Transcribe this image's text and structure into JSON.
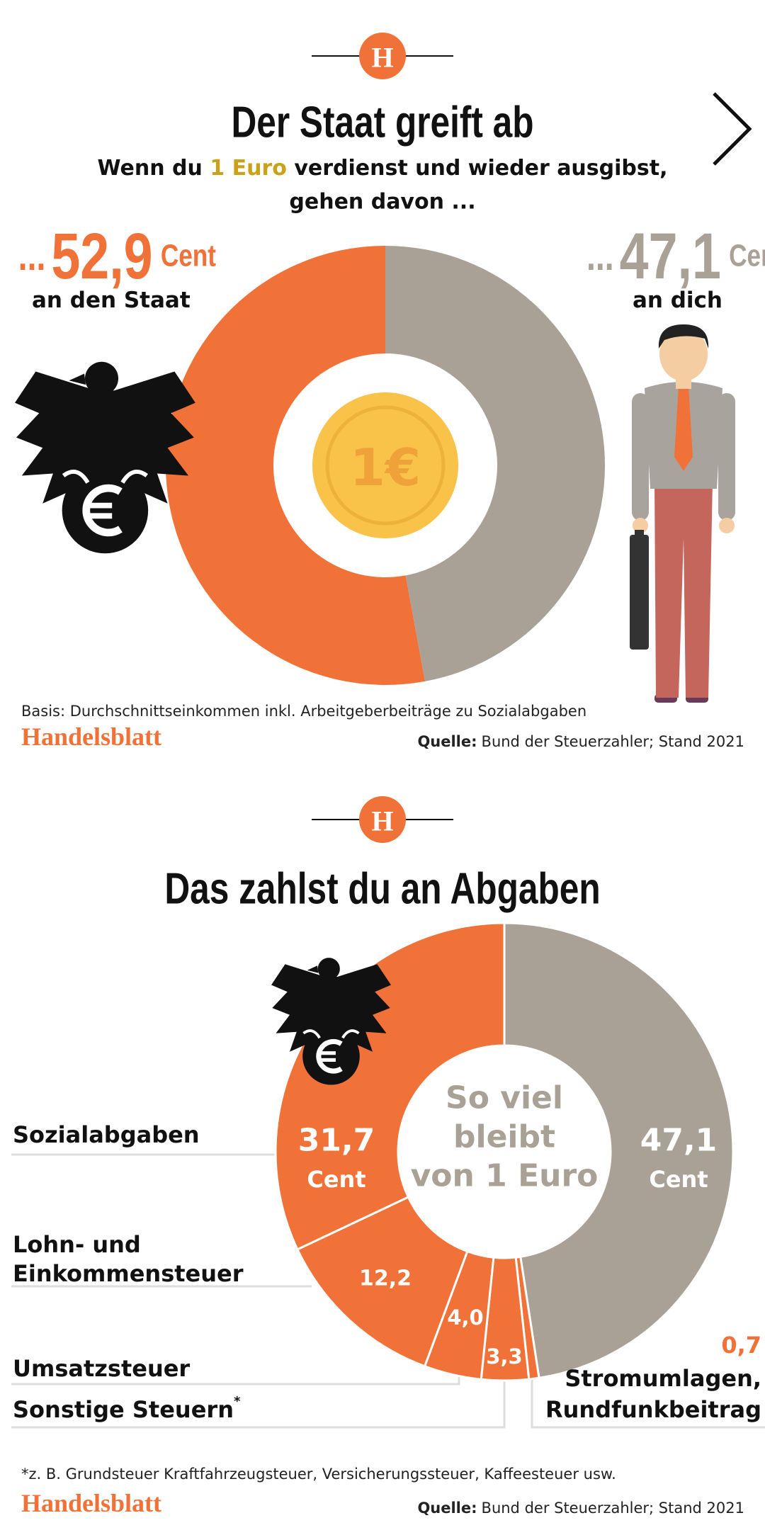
{
  "chart_data": [
    {
      "type": "donut",
      "logo": "H",
      "title": "Der Staat greift ab",
      "subtitle_parts": [
        "Wenn du ",
        "1 Euro",
        " verdienst und wieder ausgibst,",
        "gehen davon ..."
      ],
      "categories": [
        "an den Staat",
        "an dich"
      ],
      "values": [
        52.9,
        47.1
      ],
      "value_labels": [
        "52,9",
        "47,1"
      ],
      "label_prefix": "...",
      "unit": "Cent",
      "colors": [
        "#f07238",
        "#aaa196"
      ],
      "center_label": "1€",
      "note": "Basis: Durchschnittseinkommen inkl. Arbeitgeberbeiträge zu Sozialabgaben",
      "brand": "Handelsblatt",
      "source_label": "Quelle:",
      "source": "Bund der Steuerzahler; Stand 2021"
    },
    {
      "type": "donut",
      "logo": "H",
      "title": "Das zahlst du an Abgaben",
      "categories": [
        null,
        [
          "Stromumlagen,",
          "Rundfunkbeitrag"
        ],
        [
          "Sonstige Steuern"
        ],
        [
          "Umsatzsteuer"
        ],
        [
          "Lohn- und",
          "Einkommensteuer"
        ],
        [
          "Sozialabgaben"
        ]
      ],
      "footnote_marker": "*",
      "values": [
        47.1,
        0.7,
        3.3,
        4.0,
        12.2,
        31.7
      ],
      "value_labels": [
        "47,1",
        "0,7",
        "3,3",
        "4,0",
        "12,2",
        "31,7"
      ],
      "unit": "Cent",
      "colors": [
        "#aaa196",
        "#f07238",
        "#f07238",
        "#f07238",
        "#f07238",
        "#f07238"
      ],
      "center_label": [
        "So viel",
        "bleibt",
        "von 1 Euro"
      ],
      "footnote": "*z. B. Grundsteuer Kraftfahrzeugsteuer, Versicherungssteuer, Kaffeesteuer usw.",
      "brand": "Handelsblatt",
      "source_label": "Quelle:",
      "source": "Bund der Steuerzahler; Stand 2021"
    }
  ]
}
